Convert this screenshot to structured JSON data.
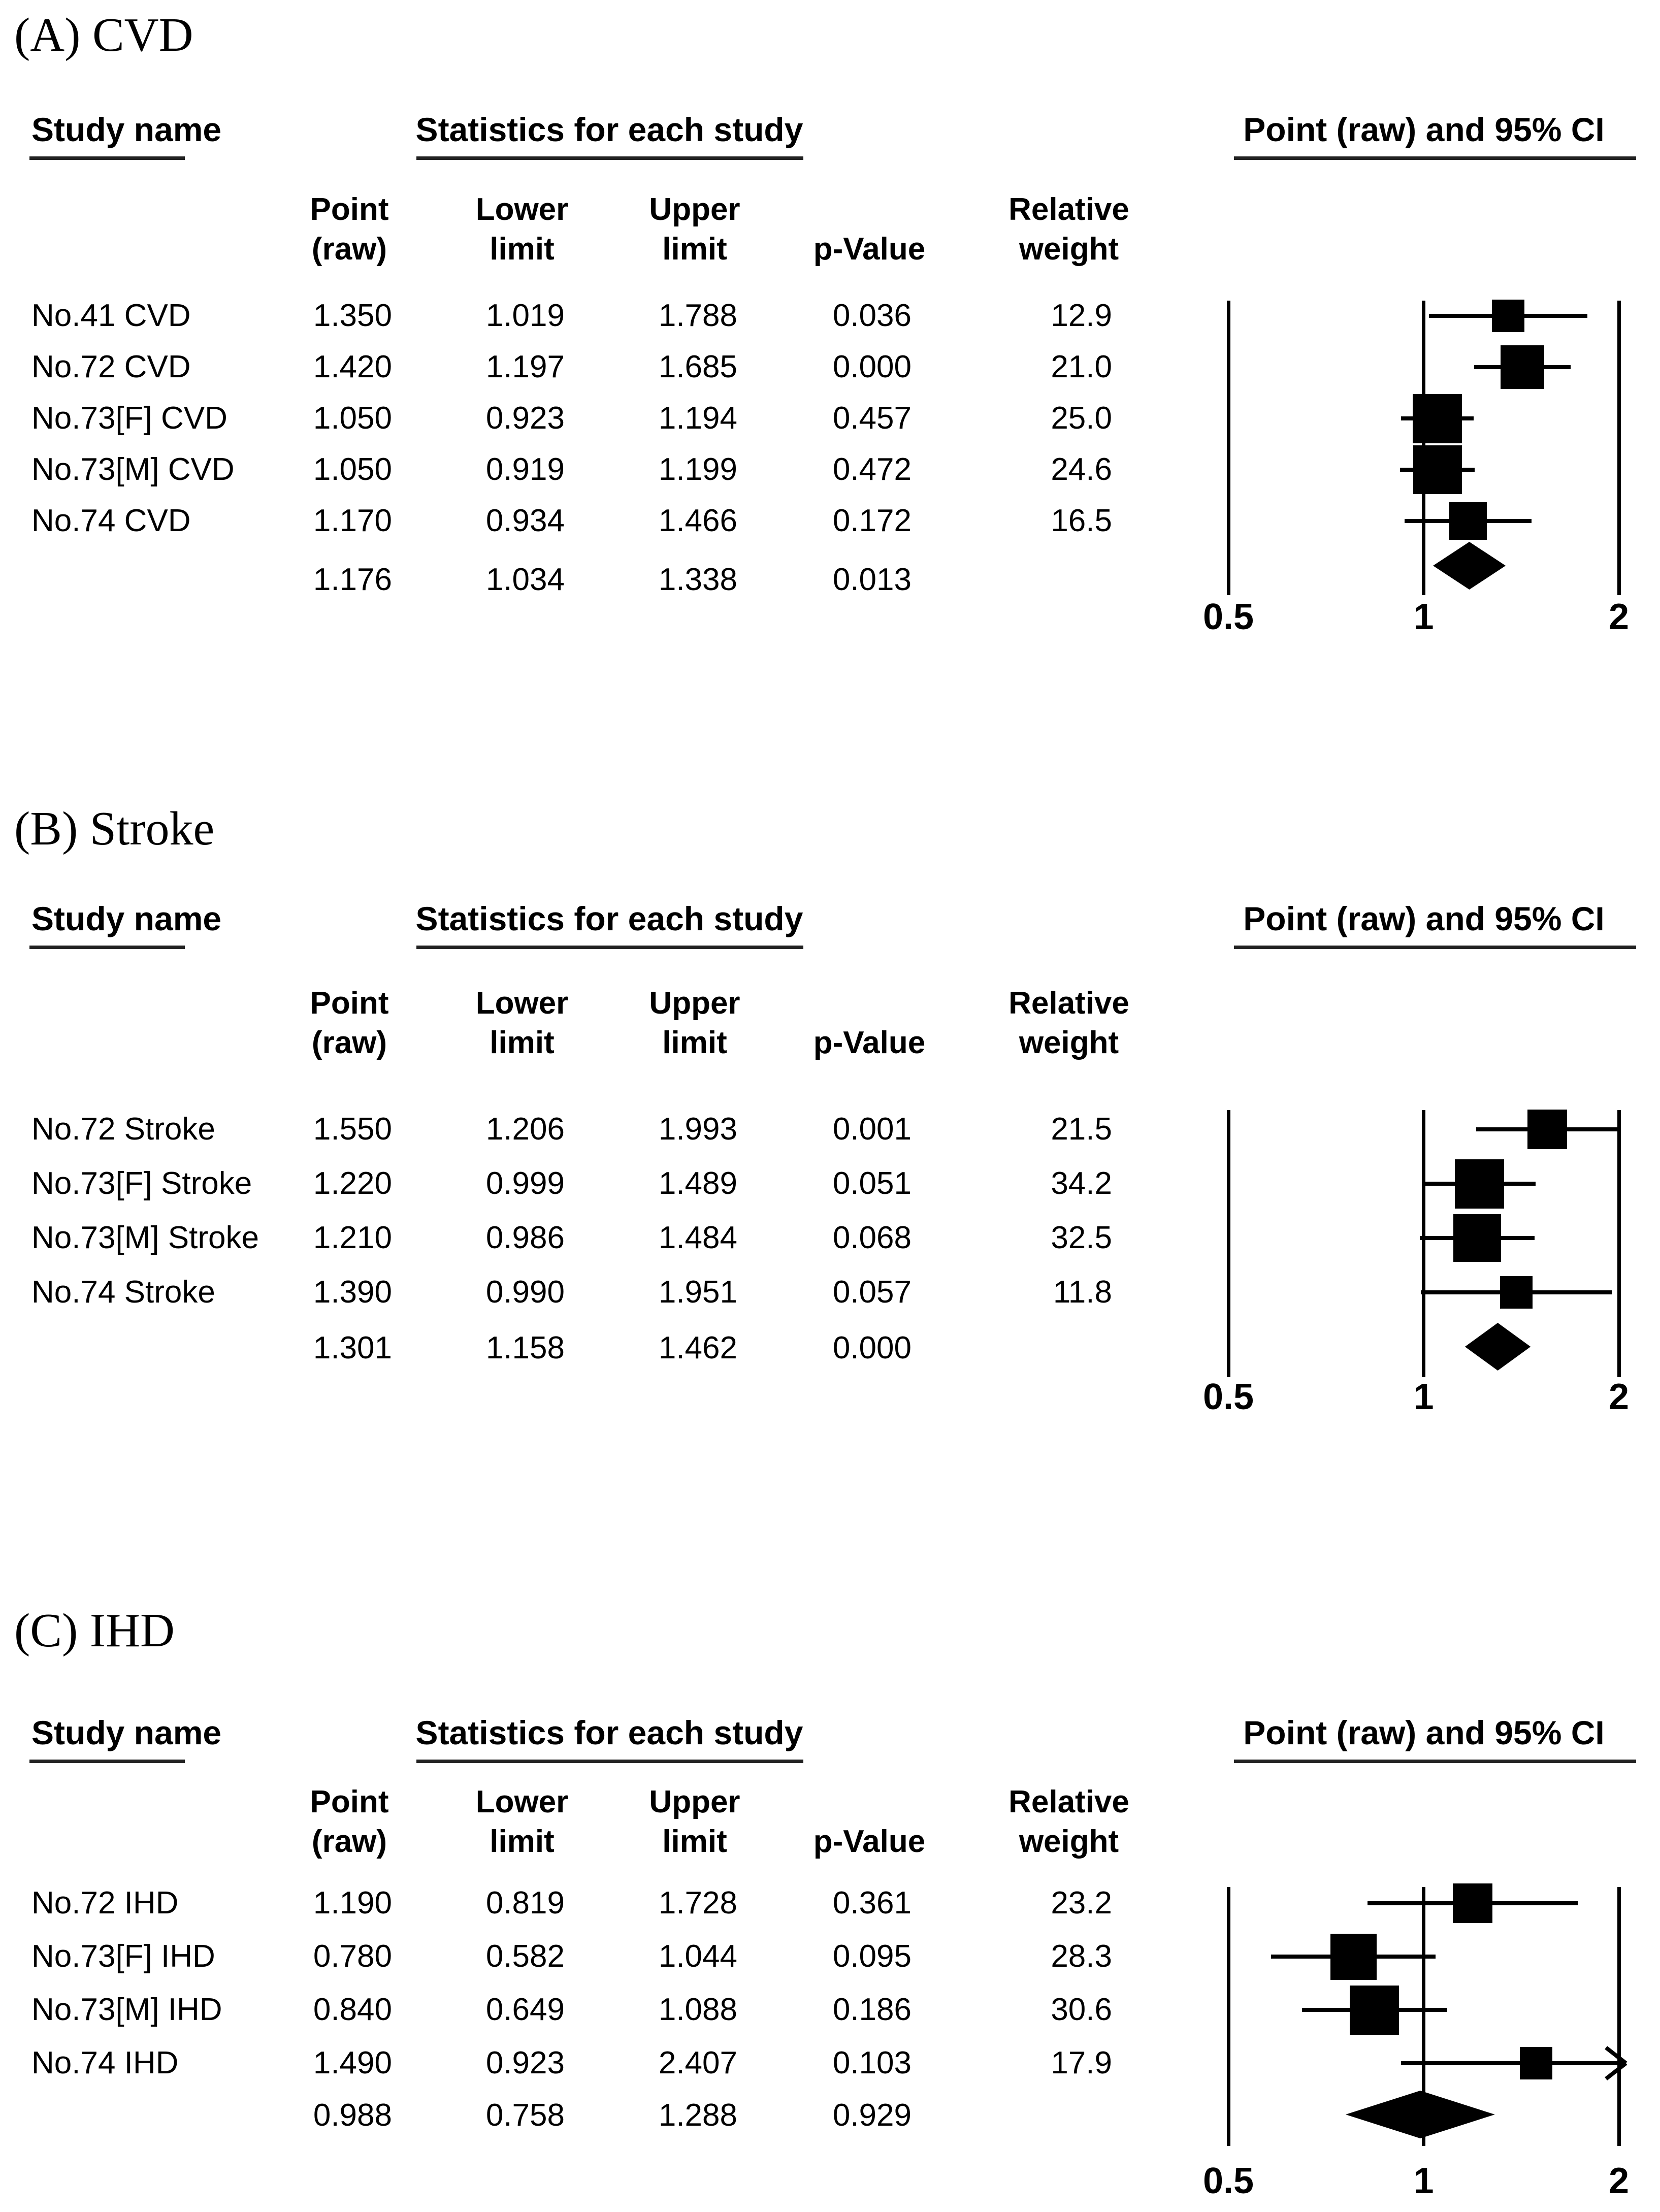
{
  "figure": {
    "columns": {
      "study": "Study name",
      "stats_group": "Statistics for each study",
      "plot": "Point (raw) and 95% CI"
    },
    "sub": [
      {
        "l1": "Point",
        "l2": "(raw)"
      },
      {
        "l1": "Lower",
        "l2": "limit"
      },
      {
        "l1": "Upper",
        "l2": "limit"
      },
      {
        "l1": "",
        "l2": "p-Value"
      },
      {
        "l1": "Relative",
        "l2": "weight"
      }
    ],
    "axis_ticks": [
      "0.5",
      "1",
      "2"
    ],
    "colors": {
      "ink": "#000000",
      "background": "#ffffff"
    }
  },
  "panels": [
    {
      "label": "(A) CVD",
      "studies": [
        {
          "name": "No.41 CVD",
          "point": "1.350",
          "lower": "1.019",
          "upper": "1.788",
          "p": "0.036",
          "weight": "12.9"
        },
        {
          "name": "No.72 CVD",
          "point": "1.420",
          "lower": "1.197",
          "upper": "1.685",
          "p": "0.000",
          "weight": "21.0"
        },
        {
          "name": "No.73[F] CVD",
          "point": "1.050",
          "lower": "0.923",
          "upper": "1.194",
          "p": "0.457",
          "weight": "25.0"
        },
        {
          "name": "No.73[M] CVD",
          "point": "1.050",
          "lower": "0.919",
          "upper": "1.199",
          "p": "0.472",
          "weight": "24.6"
        },
        {
          "name": "No.74 CVD",
          "point": "1.170",
          "lower": "0.934",
          "upper": "1.466",
          "p": "0.172",
          "weight": "16.5"
        }
      ],
      "summary": {
        "point": "1.176",
        "lower": "1.034",
        "upper": "1.338",
        "p": "0.013"
      }
    },
    {
      "label": "(B) Stroke",
      "studies": [
        {
          "name": "No.72 Stroke",
          "point": "1.550",
          "lower": "1.206",
          "upper": "1.993",
          "p": "0.001",
          "weight": "21.5"
        },
        {
          "name": "No.73[F] Stroke",
          "point": "1.220",
          "lower": "0.999",
          "upper": "1.489",
          "p": "0.051",
          "weight": "34.2"
        },
        {
          "name": "No.73[M] Stroke",
          "point": "1.210",
          "lower": "0.986",
          "upper": "1.484",
          "p": "0.068",
          "weight": "32.5"
        },
        {
          "name": "No.74 Stroke",
          "point": "1.390",
          "lower": "0.990",
          "upper": "1.951",
          "p": "0.057",
          "weight": "11.8"
        }
      ],
      "summary": {
        "point": "1.301",
        "lower": "1.158",
        "upper": "1.462",
        "p": "0.000"
      }
    },
    {
      "label": "(C) IHD",
      "studies": [
        {
          "name": "No.72 IHD",
          "point": "1.190",
          "lower": "0.819",
          "upper": "1.728",
          "p": "0.361",
          "weight": "23.2"
        },
        {
          "name": "No.73[F] IHD",
          "point": "0.780",
          "lower": "0.582",
          "upper": "1.044",
          "p": "0.095",
          "weight": "28.3"
        },
        {
          "name": "No.73[M] IHD",
          "point": "0.840",
          "lower": "0.649",
          "upper": "1.088",
          "p": "0.186",
          "weight": "30.6"
        },
        {
          "name": "No.74 IHD",
          "point": "1.490",
          "lower": "0.923",
          "upper": "2.407",
          "p": "0.103",
          "weight": "17.9"
        }
      ],
      "summary": {
        "point": "0.988",
        "lower": "0.758",
        "upper": "1.288",
        "p": "0.929"
      }
    }
  ],
  "chart_data": [
    {
      "type": "forest",
      "title": "(A) CVD",
      "x_scale": "log",
      "xlim": [
        0.5,
        2
      ],
      "x_ticks": [
        0.5,
        1,
        2
      ],
      "columns": [
        "Point (raw)",
        "Lower limit",
        "Upper limit",
        "p-Value",
        "Relative weight"
      ],
      "studies": [
        {
          "name": "No.41 CVD",
          "point": 1.35,
          "lower": 1.019,
          "upper": 1.788,
          "p": 0.036,
          "weight": 12.9
        },
        {
          "name": "No.72 CVD",
          "point": 1.42,
          "lower": 1.197,
          "upper": 1.685,
          "p": 0.0,
          "weight": 21.0
        },
        {
          "name": "No.73[F] CVD",
          "point": 1.05,
          "lower": 0.923,
          "upper": 1.194,
          "p": 0.457,
          "weight": 25.0
        },
        {
          "name": "No.73[M] CVD",
          "point": 1.05,
          "lower": 0.919,
          "upper": 1.199,
          "p": 0.472,
          "weight": 24.6
        },
        {
          "name": "No.74 CVD",
          "point": 1.17,
          "lower": 0.934,
          "upper": 1.466,
          "p": 0.172,
          "weight": 16.5
        }
      ],
      "summary": {
        "point": 1.176,
        "lower": 1.034,
        "upper": 1.338,
        "p": 0.013
      }
    },
    {
      "type": "forest",
      "title": "(B) Stroke",
      "x_scale": "log",
      "xlim": [
        0.5,
        2
      ],
      "x_ticks": [
        0.5,
        1,
        2
      ],
      "columns": [
        "Point (raw)",
        "Lower limit",
        "Upper limit",
        "p-Value",
        "Relative weight"
      ],
      "studies": [
        {
          "name": "No.72 Stroke",
          "point": 1.55,
          "lower": 1.206,
          "upper": 1.993,
          "p": 0.001,
          "weight": 21.5
        },
        {
          "name": "No.73[F] Stroke",
          "point": 1.22,
          "lower": 0.999,
          "upper": 1.489,
          "p": 0.051,
          "weight": 34.2
        },
        {
          "name": "No.73[M] Stroke",
          "point": 1.21,
          "lower": 0.986,
          "upper": 1.484,
          "p": 0.068,
          "weight": 32.5
        },
        {
          "name": "No.74 Stroke",
          "point": 1.39,
          "lower": 0.99,
          "upper": 1.951,
          "p": 0.057,
          "weight": 11.8
        }
      ],
      "summary": {
        "point": 1.301,
        "lower": 1.158,
        "upper": 1.462,
        "p": 0.0
      }
    },
    {
      "type": "forest",
      "title": "(C) IHD",
      "x_scale": "log",
      "xlim": [
        0.5,
        2
      ],
      "x_ticks": [
        0.5,
        1,
        2
      ],
      "columns": [
        "Point (raw)",
        "Lower limit",
        "Upper limit",
        "p-Value",
        "Relative weight"
      ],
      "studies": [
        {
          "name": "No.72 IHD",
          "point": 1.19,
          "lower": 0.819,
          "upper": 1.728,
          "p": 0.361,
          "weight": 23.2
        },
        {
          "name": "No.73[F] IHD",
          "point": 0.78,
          "lower": 0.582,
          "upper": 1.044,
          "p": 0.095,
          "weight": 28.3
        },
        {
          "name": "No.73[M] IHD",
          "point": 0.84,
          "lower": 0.649,
          "upper": 1.088,
          "p": 0.186,
          "weight": 30.6
        },
        {
          "name": "No.74 IHD",
          "point": 1.49,
          "lower": 0.923,
          "upper": 2.407,
          "p": 0.103,
          "weight": 17.9
        }
      ],
      "summary": {
        "point": 0.988,
        "lower": 0.758,
        "upper": 1.288,
        "p": 0.929
      }
    }
  ]
}
